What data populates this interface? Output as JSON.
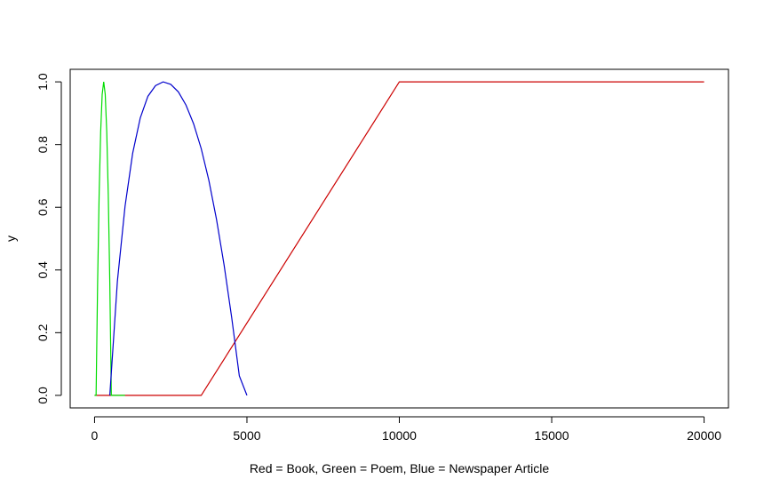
{
  "chart_data": {
    "type": "line",
    "title": "",
    "xlabel": "Red = Book, Green = Poem, Blue = Newspaper Article",
    "ylabel": "y",
    "xlim": [
      -800,
      20800
    ],
    "ylim": [
      -0.04,
      1.04
    ],
    "x_ticks": [
      0,
      5000,
      10000,
      15000,
      20000
    ],
    "x_tick_labels": [
      "0",
      "5000",
      "10000",
      "15000",
      "20000"
    ],
    "y_ticks": [
      0.0,
      0.2,
      0.4,
      0.6,
      0.8,
      1.0
    ],
    "y_tick_labels": [
      "0.0",
      "0.2",
      "0.4",
      "0.6",
      "0.8",
      "1.0"
    ],
    "grid": false,
    "series": [
      {
        "color": "#cc0000",
        "x": [
          0,
          3500,
          10000,
          20000
        ],
        "y": [
          0,
          0,
          1,
          1
        ]
      },
      {
        "color": "#00dd00",
        "x": [
          0,
          50,
          100,
          150,
          200,
          250,
          300,
          350,
          400,
          450,
          500,
          550,
          600,
          650,
          700,
          750,
          800,
          850,
          900,
          950,
          1000
        ],
        "y": [
          0,
          0,
          0.36,
          0.64,
          0.84,
          0.96,
          1.0,
          0.96,
          0.84,
          0.64,
          0.36,
          0,
          0,
          0,
          0,
          0,
          0,
          0,
          0,
          0,
          0
        ]
      },
      {
        "color": "#0000cc",
        "x": [
          500,
          750,
          1000,
          1250,
          1500,
          1750,
          2000,
          2250,
          2500,
          2750,
          3000,
          3250,
          3500,
          3750,
          4000,
          4250,
          4500,
          4750,
          5000
        ],
        "y": [
          0,
          0.365,
          0.603,
          0.772,
          0.885,
          0.954,
          0.988,
          1.0,
          0.992,
          0.968,
          0.926,
          0.866,
          0.787,
          0.686,
          0.562,
          0.416,
          0.248,
          0.062,
          0
        ]
      }
    ]
  }
}
